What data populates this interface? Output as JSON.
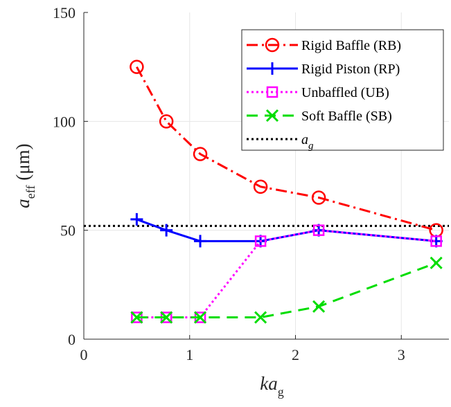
{
  "chart_data": {
    "type": "line",
    "xlabel": {
      "main": "ka",
      "sub": "g"
    },
    "ylabel": {
      "main": "a",
      "sub": "eff",
      "unit": "(μm)"
    },
    "xlim": [
      0,
      3.45
    ],
    "ylim": [
      0,
      150
    ],
    "xticks": [
      0,
      1,
      2,
      3
    ],
    "yticks": [
      0,
      50,
      100,
      150
    ],
    "grid": true,
    "legend_position": "top-right",
    "series": [
      {
        "name": "Rigid Baffle (RB)",
        "color": "#ff0000",
        "line": "dashdot",
        "marker": "circle",
        "x": [
          0.5,
          0.78,
          1.1,
          1.67,
          2.22,
          3.33
        ],
        "y": [
          125,
          100,
          85,
          70,
          65,
          50
        ]
      },
      {
        "name": "Rigid Piston (RP)",
        "color": "#0000ff",
        "line": "solid",
        "marker": "plus",
        "x": [
          0.5,
          0.78,
          1.1,
          1.67,
          2.22,
          3.33
        ],
        "y": [
          55,
          50,
          45,
          45,
          50,
          45
        ]
      },
      {
        "name": "Unbaffled (UB)",
        "color": "#ff00ff",
        "line": "dotted",
        "marker": "square",
        "x": [
          0.5,
          0.78,
          1.1,
          1.67,
          2.22,
          3.33
        ],
        "y": [
          10,
          10,
          10,
          45,
          50,
          45
        ]
      },
      {
        "name": "Soft Baffle (SB)",
        "color": "#00dd00",
        "line": "dashed",
        "marker": "x",
        "x": [
          0.5,
          0.78,
          1.1,
          1.67,
          2.22,
          3.33
        ],
        "y": [
          10,
          10,
          10,
          10,
          15,
          35
        ]
      }
    ],
    "reference_line": {
      "name_main": "a",
      "name_sub": "g",
      "color": "#000000",
      "line": "dotted",
      "y": 52
    }
  }
}
